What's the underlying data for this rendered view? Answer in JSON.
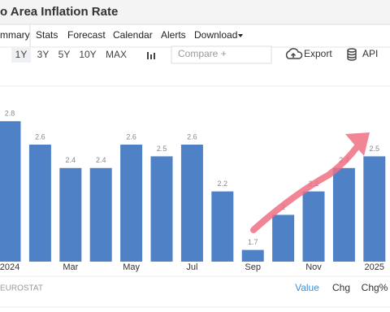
{
  "header": {
    "title": "o Area Inflation Rate"
  },
  "tabs": [
    "mmary",
    "Stats",
    "Forecast",
    "Calendar",
    "Alerts",
    "Download"
  ],
  "toolbar": {
    "ranges": [
      "1Y",
      "3Y",
      "5Y",
      "10Y",
      "MAX"
    ],
    "compare": "Compare +",
    "export": "Export",
    "api": "API"
  },
  "chart_data": {
    "type": "bar",
    "categories": [
      "2024",
      null,
      "Mar",
      null,
      "May",
      null,
      "Jul",
      null,
      "Sep",
      null,
      "Nov",
      null,
      "2025"
    ],
    "values": [
      2.8,
      2.6,
      2.4,
      2.4,
      2.6,
      2.5,
      2.6,
      2.2,
      1.7,
      2,
      2.2,
      2.4,
      2.5
    ],
    "color": "#4f81c7",
    "ylim": [
      1.6,
      3.1
    ]
  },
  "footer": {
    "source": "EUROSTAT",
    "buttons": [
      "Value",
      "Chg",
      "Chg%"
    ]
  }
}
